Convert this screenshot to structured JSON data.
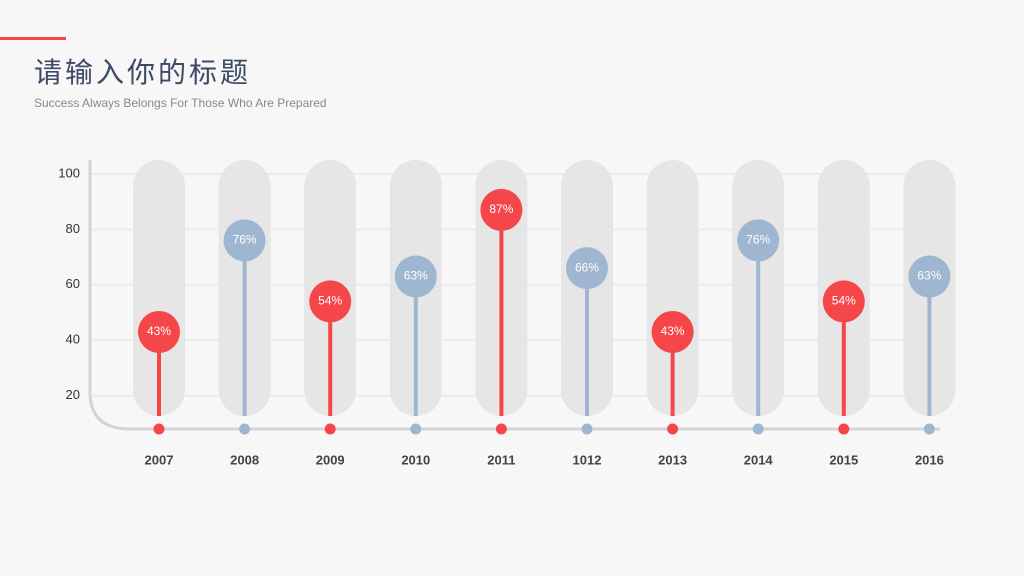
{
  "chart_data": {
    "type": "lollipop",
    "title": "请输入你的标题",
    "subtitle": "Success Always Belongs For Those Who Are Prepared",
    "categories": [
      "2007",
      "2008",
      "2009",
      "2010",
      "2011",
      "1012",
      "2013",
      "2014",
      "2015",
      "2016"
    ],
    "values": [
      43,
      76,
      54,
      63,
      87,
      66,
      43,
      76,
      54,
      63
    ],
    "value_labels": [
      "43%",
      "76%",
      "54%",
      "63%",
      "87%",
      "66%",
      "43%",
      "76%",
      "54%",
      "63%"
    ],
    "colors": [
      "#f5474a",
      "#9fb6d1",
      "#f5474a",
      "#9fb6d1",
      "#f5474a",
      "#9fb6d1",
      "#f5474a",
      "#9fb6d1",
      "#f5474a",
      "#9fb6d1"
    ],
    "ylim": [
      8,
      105
    ],
    "yticks": [
      20,
      40,
      60,
      80,
      100
    ],
    "grid": true
  }
}
